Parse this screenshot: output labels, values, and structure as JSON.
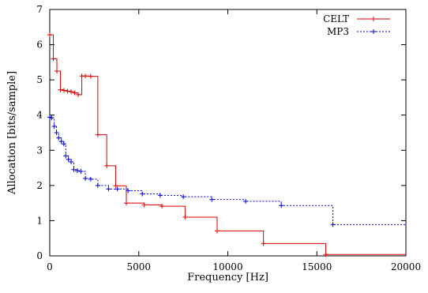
{
  "chart_data": {
    "type": "line",
    "xlabel": "Frequency [Hz]",
    "ylabel": "Allocation [bits/sample]",
    "xlim": [
      0,
      20000
    ],
    "ylim": [
      0,
      7
    ],
    "xticks": [
      0,
      5000,
      10000,
      15000,
      20000
    ],
    "yticks": [
      0,
      1,
      2,
      3,
      4,
      5,
      6,
      7
    ],
    "xtick_labels": [
      "0",
      "5000",
      "10000",
      "15000",
      "20000"
    ],
    "ytick_labels": [
      "0",
      "1",
      "2",
      "3",
      "4",
      "5",
      "6",
      "7"
    ],
    "legend_position": "top-right",
    "grid": false,
    "step": true,
    "series": [
      {
        "name": "CELT",
        "color": "#e00000",
        "dash": "solid",
        "x": [
          0,
          200,
          400,
          600,
          800,
          1000,
          1200,
          1400,
          1600,
          1800,
          2000,
          2300,
          2700,
          3200,
          3700,
          4300,
          5300,
          6300,
          7600,
          9400,
          12000,
          15500,
          20000
        ],
        "y": [
          6.28,
          5.6,
          5.25,
          4.72,
          4.7,
          4.68,
          4.66,
          4.63,
          4.58,
          5.11,
          5.11,
          5.1,
          3.44,
          2.56,
          1.99,
          1.5,
          1.45,
          1.41,
          1.1,
          0.71,
          0.35,
          0.04,
          0.04
        ]
      },
      {
        "name": "MP3",
        "color": "#0000e0",
        "dash": "dotted",
        "x": [
          0,
          100,
          250,
          380,
          500,
          650,
          790,
          900,
          1050,
          1200,
          1350,
          1550,
          1750,
          2000,
          2300,
          2700,
          3300,
          3800,
          4400,
          5200,
          6200,
          7500,
          9100,
          11000,
          13000,
          15900,
          20000
        ],
        "y": [
          3.94,
          3.92,
          3.68,
          3.5,
          3.35,
          3.25,
          3.18,
          2.84,
          2.74,
          2.67,
          2.45,
          2.42,
          2.4,
          2.2,
          2.18,
          2.0,
          1.9,
          1.9,
          1.85,
          1.76,
          1.72,
          1.68,
          1.6,
          1.55,
          1.43,
          0.89,
          0.89
        ]
      }
    ]
  }
}
